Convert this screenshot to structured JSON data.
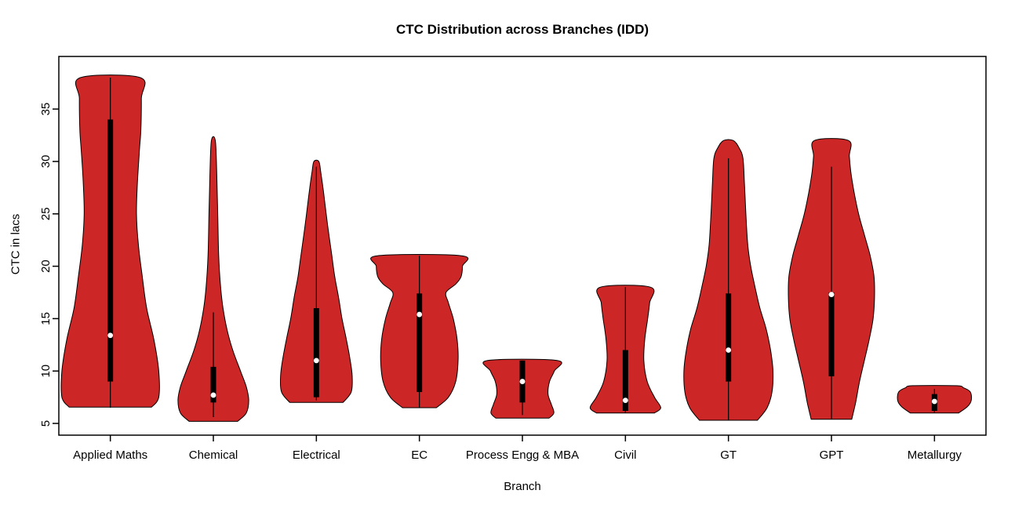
{
  "chart_data": {
    "type": "violin",
    "title": "CTC Distribution across Branches (IDD)",
    "xlabel": "Branch",
    "ylabel": "CTC in lacs",
    "y_ticks": [
      5,
      10,
      15,
      20,
      25,
      30,
      35
    ],
    "y_domain": [
      3.88,
      40.02
    ],
    "grid": false,
    "legend": false,
    "colors": {
      "violin_fill": "#CD2626",
      "violin_stroke": "#000000",
      "box": "#000000",
      "median_dot": "#FFFFFF",
      "axis": "#000000",
      "background": "#FFFFFF"
    },
    "categories": [
      "Applied Maths",
      "Chemical",
      "Electrical",
      "EC",
      "Process Engg & MBA",
      "Civil",
      "GT",
      "GPT",
      "Metallurgy"
    ],
    "violins": [
      {
        "name": "Applied Maths",
        "min": 6.5,
        "max": 38,
        "q1": 9,
        "q3": 34,
        "median": 13.4,
        "whisker_low": 6.5,
        "whisker_high": 38,
        "profile": [
          [
            6.55,
            0.85
          ],
          [
            7.5,
            1.0
          ],
          [
            10,
            1.0
          ],
          [
            13,
            0.9
          ],
          [
            16,
            0.75
          ],
          [
            19,
            0.66
          ],
          [
            22,
            0.58
          ],
          [
            25,
            0.54
          ],
          [
            28,
            0.56
          ],
          [
            31,
            0.6
          ],
          [
            33,
            0.63
          ],
          [
            36,
            0.64
          ],
          [
            38,
            0.62
          ]
        ]
      },
      {
        "name": "Chemical",
        "min": 5.2,
        "max": 32,
        "q1": 7,
        "q3": 10.4,
        "median": 7.7,
        "whisker_low": 5.6,
        "whisker_high": 15.6,
        "profile": [
          [
            5.2,
            0.5
          ],
          [
            6,
            0.68
          ],
          [
            7.2,
            0.73
          ],
          [
            8.5,
            0.68
          ],
          [
            10,
            0.56
          ],
          [
            12,
            0.4
          ],
          [
            14,
            0.28
          ],
          [
            16,
            0.2
          ],
          [
            18,
            0.15
          ],
          [
            21,
            0.11
          ],
          [
            25,
            0.09
          ],
          [
            29,
            0.07
          ],
          [
            32,
            0.04
          ]
        ]
      },
      {
        "name": "Electrical",
        "min": 7.0,
        "max": 30,
        "q1": 7.5,
        "q3": 16,
        "median": 11,
        "whisker_low": 7.2,
        "whisker_high": 29.5,
        "profile": [
          [
            7.0,
            0.55
          ],
          [
            8,
            0.72
          ],
          [
            9.5,
            0.74
          ],
          [
            11,
            0.7
          ],
          [
            13,
            0.62
          ],
          [
            15,
            0.53
          ],
          [
            17,
            0.46
          ],
          [
            19,
            0.38
          ],
          [
            21,
            0.32
          ],
          [
            24,
            0.23
          ],
          [
            27,
            0.15
          ],
          [
            29,
            0.09
          ],
          [
            30,
            0.05
          ]
        ]
      },
      {
        "name": "EC",
        "min": 6.5,
        "max": 21,
        "q1": 8,
        "q3": 17.4,
        "median": 15.4,
        "whisker_low": 6.5,
        "whisker_high": 21,
        "profile": [
          [
            6.5,
            0.35
          ],
          [
            7.5,
            0.6
          ],
          [
            9,
            0.75
          ],
          [
            11,
            0.8
          ],
          [
            13,
            0.78
          ],
          [
            15,
            0.7
          ],
          [
            16.5,
            0.6
          ],
          [
            17.5,
            0.55
          ],
          [
            18.3,
            0.75
          ],
          [
            19,
            0.86
          ],
          [
            20,
            0.89
          ],
          [
            21,
            0.87
          ]
        ]
      },
      {
        "name": "Process Engg & MBA",
        "min": 5.5,
        "max": 11,
        "q1": 7,
        "q3": 11,
        "median": 9,
        "whisker_low": 5.8,
        "whisker_high": 11,
        "profile": [
          [
            5.5,
            0.55
          ],
          [
            6,
            0.65
          ],
          [
            6.8,
            0.6
          ],
          [
            7.8,
            0.53
          ],
          [
            9,
            0.56
          ],
          [
            10,
            0.66
          ],
          [
            11,
            0.72
          ]
        ]
      },
      {
        "name": "Civil",
        "min": 6.0,
        "max": 18,
        "q1": 6.2,
        "q3": 12,
        "median": 7.2,
        "whisker_low": 6.0,
        "whisker_high": 18,
        "profile": [
          [
            6.0,
            0.6
          ],
          [
            6.5,
            0.73
          ],
          [
            7.5,
            0.6
          ],
          [
            9,
            0.45
          ],
          [
            11,
            0.38
          ],
          [
            13,
            0.4
          ],
          [
            15,
            0.46
          ],
          [
            16.5,
            0.5
          ],
          [
            18,
            0.52
          ]
        ]
      },
      {
        "name": "GT",
        "min": 5.3,
        "max": 32,
        "q1": 9,
        "q3": 17.4,
        "median": 12,
        "whisker_low": 5.3,
        "whisker_high": 30.3,
        "profile": [
          [
            5.3,
            0.6
          ],
          [
            6.5,
            0.8
          ],
          [
            8,
            0.9
          ],
          [
            10,
            0.92
          ],
          [
            12,
            0.87
          ],
          [
            14,
            0.78
          ],
          [
            16,
            0.65
          ],
          [
            18,
            0.55
          ],
          [
            20,
            0.46
          ],
          [
            22,
            0.4
          ],
          [
            25,
            0.36
          ],
          [
            28,
            0.33
          ],
          [
            30.3,
            0.3
          ],
          [
            31.3,
            0.22
          ],
          [
            32,
            0.1
          ]
        ]
      },
      {
        "name": "GPT",
        "min": 5.4,
        "max": 32,
        "q1": 9.5,
        "q3": 17.5,
        "median": 17.3,
        "whisker_low": 5.4,
        "whisker_high": 29.5,
        "profile": [
          [
            5.4,
            0.42
          ],
          [
            7,
            0.5
          ],
          [
            9,
            0.58
          ],
          [
            11,
            0.68
          ],
          [
            13,
            0.78
          ],
          [
            15,
            0.86
          ],
          [
            17,
            0.89
          ],
          [
            19,
            0.88
          ],
          [
            21,
            0.8
          ],
          [
            23,
            0.68
          ],
          [
            25,
            0.56
          ],
          [
            27,
            0.47
          ],
          [
            29,
            0.4
          ],
          [
            30.5,
            0.37
          ],
          [
            32,
            0.35
          ]
        ]
      },
      {
        "name": "Metallurgy",
        "min": 6.0,
        "max": 8.6,
        "q1": 6.2,
        "q3": 7.8,
        "median": 7.1,
        "whisker_low": 6.0,
        "whisker_high": 8.3,
        "profile": [
          [
            6.0,
            0.5
          ],
          [
            6.6,
            0.68
          ],
          [
            7.2,
            0.76
          ],
          [
            8,
            0.74
          ],
          [
            8.4,
            0.6
          ],
          [
            8.6,
            0.45
          ]
        ]
      }
    ]
  }
}
